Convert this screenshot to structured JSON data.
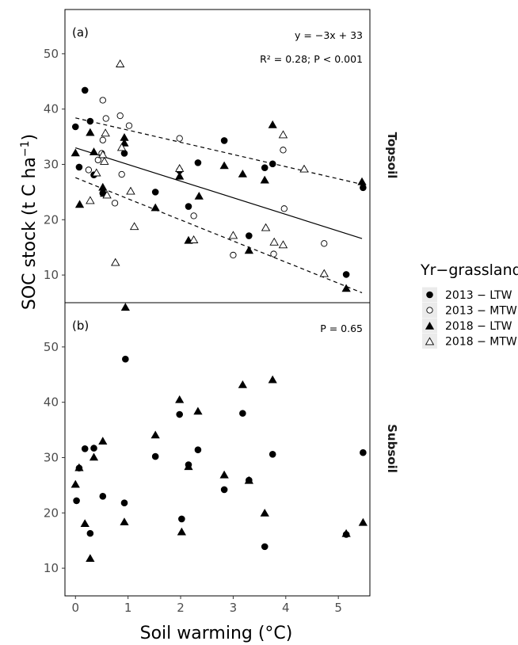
{
  "chart_data": {
    "type": "scatter",
    "xlabel": "Soil warming (°C)",
    "ylabel_main": "SOC stock (t C ha",
    "ylabel_sup": "−1",
    "ylabel_close": ")",
    "x_ticks": [
      0,
      1,
      2,
      3,
      4,
      5
    ],
    "x_tick_labels": [
      "0",
      "1",
      "2",
      "3",
      "4",
      "5"
    ],
    "xlim": [
      -0.2,
      5.6
    ],
    "ylim": [
      5,
      58
    ],
    "y_ticks": [
      10,
      20,
      30,
      40,
      50
    ],
    "y_tick_labels": [
      "10",
      "20",
      "30",
      "40",
      "50"
    ],
    "legend": {
      "title": "Yr−grassland",
      "placement": "right",
      "entries": [
        {
          "label": "2013 − LTW",
          "shape": "circle",
          "filled": true
        },
        {
          "label": "2013 − MTW",
          "shape": "circle",
          "filled": false
        },
        {
          "label": "2018 − LTW",
          "shape": "triangle",
          "filled": true
        },
        {
          "label": "2018 − MTW",
          "shape": "triangle",
          "filled": false
        }
      ]
    },
    "panels": [
      {
        "tag": "(a)",
        "strip": "Topsoil",
        "annotations": [
          "y = −3x + 33",
          "R² = 0.28; P < 0.001"
        ],
        "lines": [
          {
            "style": "solid",
            "x": [
              0,
              5.45
            ],
            "y": [
              33,
              16.6
            ]
          },
          {
            "style": "dashed",
            "x": [
              0,
              5.45
            ],
            "y": [
              38.4,
              26.4
            ]
          },
          {
            "style": "dashed",
            "x": [
              0,
              5.45
            ],
            "y": [
              27.6,
              6.8
            ]
          }
        ],
        "series": [
          {
            "name": "2013 − LTW",
            "points": [
              [
                0.0,
                36.8
              ],
              [
                0.07,
                29.5
              ],
              [
                0.18,
                43.4
              ],
              [
                0.28,
                37.8
              ],
              [
                0.35,
                28.1
              ],
              [
                0.52,
                24.8
              ],
              [
                0.93,
                32.0
              ],
              [
                1.52,
                25.0
              ],
              [
                1.98,
                28.9
              ],
              [
                2.15,
                22.4
              ],
              [
                2.33,
                30.3
              ],
              [
                2.83,
                34.3
              ],
              [
                3.3,
                17.1
              ],
              [
                3.6,
                29.4
              ],
              [
                3.75,
                30.1
              ],
              [
                5.15,
                10.1
              ],
              [
                5.47,
                25.8
              ]
            ]
          },
          {
            "name": "2013 − MTW",
            "points": [
              [
                0.25,
                29.0
              ],
              [
                0.43,
                30.8
              ],
              [
                0.5,
                32.0
              ],
              [
                0.52,
                34.4
              ],
              [
                0.52,
                41.6
              ],
              [
                0.58,
                38.3
              ],
              [
                0.75,
                23.0
              ],
              [
                0.85,
                38.8
              ],
              [
                0.88,
                28.2
              ],
              [
                1.02,
                37.0
              ],
              [
                1.98,
                34.7
              ],
              [
                2.25,
                20.7
              ],
              [
                3.0,
                13.6
              ],
              [
                3.77,
                13.8
              ],
              [
                3.95,
                32.6
              ],
              [
                3.97,
                22.0
              ],
              [
                4.73,
                15.7
              ]
            ]
          },
          {
            "name": "2018 − LTW",
            "points": [
              [
                0.0,
                32.0
              ],
              [
                0.08,
                22.7
              ],
              [
                0.28,
                35.7
              ],
              [
                0.35,
                32.2
              ],
              [
                0.52,
                25.8
              ],
              [
                0.55,
                24.7
              ],
              [
                0.93,
                33.8
              ],
              [
                0.93,
                34.8
              ],
              [
                1.52,
                22.1
              ],
              [
                1.98,
                27.8
              ],
              [
                2.15,
                16.2
              ],
              [
                2.35,
                24.2
              ],
              [
                2.83,
                29.7
              ],
              [
                3.18,
                28.2
              ],
              [
                3.3,
                14.4
              ],
              [
                3.6,
                27.1
              ],
              [
                3.75,
                37.1
              ],
              [
                5.15,
                7.5
              ],
              [
                5.45,
                26.8
              ]
            ]
          },
          {
            "name": "2018 − MTW",
            "points": [
              [
                0.28,
                23.4
              ],
              [
                0.4,
                28.4
              ],
              [
                0.52,
                31.7
              ],
              [
                0.55,
                30.5
              ],
              [
                0.57,
                35.6
              ],
              [
                0.6,
                24.4
              ],
              [
                0.76,
                12.2
              ],
              [
                0.85,
                48.1
              ],
              [
                0.88,
                33.0
              ],
              [
                1.05,
                25.1
              ],
              [
                1.12,
                18.7
              ],
              [
                1.98,
                29.2
              ],
              [
                2.25,
                16.3
              ],
              [
                3.0,
                17.1
              ],
              [
                3.62,
                18.5
              ],
              [
                3.78,
                15.9
              ],
              [
                3.95,
                15.4
              ],
              [
                3.95,
                35.3
              ],
              [
                4.35,
                29.1
              ],
              [
                4.73,
                10.2
              ]
            ]
          }
        ]
      },
      {
        "tag": "(b)",
        "strip": "Subsoil",
        "annotations": [
          "P = 0.65"
        ],
        "lines": [],
        "series": [
          {
            "name": "2013 − LTW",
            "points": [
              [
                0.02,
                22.2
              ],
              [
                0.07,
                28.1
              ],
              [
                0.18,
                31.6
              ],
              [
                0.28,
                16.3
              ],
              [
                0.35,
                31.7
              ],
              [
                0.52,
                23.0
              ],
              [
                0.93,
                21.8
              ],
              [
                0.95,
                47.8
              ],
              [
                1.52,
                30.2
              ],
              [
                1.98,
                37.8
              ],
              [
                2.02,
                18.9
              ],
              [
                2.15,
                28.7
              ],
              [
                2.33,
                31.4
              ],
              [
                2.83,
                24.2
              ],
              [
                3.18,
                38.0
              ],
              [
                3.3,
                25.9
              ],
              [
                3.6,
                13.9
              ],
              [
                3.75,
                30.6
              ],
              [
                5.15,
                16.1
              ],
              [
                5.47,
                30.9
              ]
            ]
          },
          {
            "name": "2018 − LTW",
            "points": [
              [
                0.0,
                25.1
              ],
              [
                0.07,
                28.1
              ],
              [
                0.18,
                18.0
              ],
              [
                0.28,
                11.7
              ],
              [
                0.35,
                30.0
              ],
              [
                0.52,
                32.9
              ],
              [
                0.93,
                18.3
              ],
              [
                0.95,
                57.1
              ],
              [
                1.52,
                34.0
              ],
              [
                1.98,
                40.4
              ],
              [
                2.02,
                16.5
              ],
              [
                2.15,
                28.3
              ],
              [
                2.33,
                38.3
              ],
              [
                2.83,
                26.8
              ],
              [
                3.18,
                43.1
              ],
              [
                3.3,
                25.8
              ],
              [
                3.6,
                19.9
              ],
              [
                3.75,
                44.0
              ],
              [
                5.15,
                16.2
              ],
              [
                5.47,
                18.2
              ]
            ]
          }
        ]
      }
    ]
  }
}
